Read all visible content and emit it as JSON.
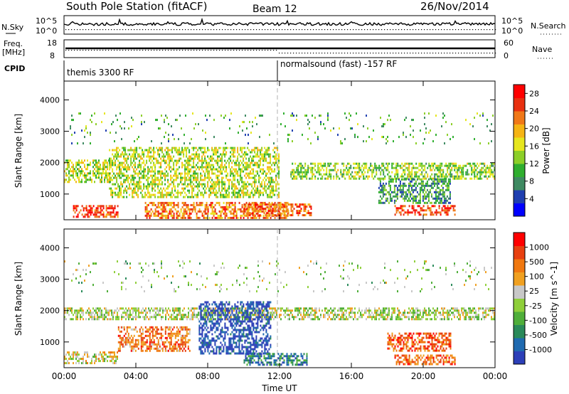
{
  "header": {
    "station": "South Pole Station (fitACF)",
    "beam": "Beam 12",
    "date": "26/Nov/2014"
  },
  "strips": {
    "nsky_label": "N.Sky",
    "nsky_ticks": [
      "10^5",
      "10^0"
    ],
    "nsearch_label": "N.Search",
    "freq_label": "Freq.",
    "freq_unit": "[MHz]",
    "freq_ticks": [
      "18",
      "8"
    ],
    "nave_label": "Nave",
    "nave_ticks": [
      "60",
      "0"
    ],
    "cpid_label": "CPID",
    "cpid_segments": [
      {
        "label": "themis 3300 RF",
        "start": "00:00",
        "end": "12:00"
      },
      {
        "label": "normalsound (fast) -157 RF",
        "start": "12:00",
        "end": "24:00"
      }
    ]
  },
  "chart_data": [
    {
      "type": "heatmap",
      "title": "",
      "ylabel": "Slant Range [km]",
      "yticks": [
        "1000",
        "2000",
        "3000",
        "4000"
      ],
      "ylim": [
        180,
        4600
      ],
      "xlim": [
        "00:00",
        "24:00"
      ],
      "colorbar_label": "Power [dB]",
      "colorbar_ticks": [
        "4",
        "8",
        "12",
        "16",
        "20",
        "24",
        "28"
      ],
      "colorbar_range": [
        0,
        30
      ],
      "colors": [
        "#0000ff",
        "#1f3fb0",
        "#3f8a62",
        "#2fae2f",
        "#8ccf28",
        "#e6e61e",
        "#f5b414",
        "#f07818",
        "#e83010",
        "#ff0000"
      ],
      "bands": [
        {
          "start_h": 0.0,
          "end_h": 2.6,
          "range_lo": 1400,
          "range_hi": 2100,
          "level": 0.5
        },
        {
          "start_h": 0.5,
          "end_h": 3.0,
          "range_lo": 300,
          "range_hi": 650,
          "level": 0.85
        },
        {
          "start_h": 2.5,
          "end_h": 12.0,
          "range_lo": 900,
          "range_hi": 2500,
          "level": 0.5
        },
        {
          "start_h": 4.5,
          "end_h": 12.5,
          "range_lo": 250,
          "range_hi": 750,
          "level": 0.75
        },
        {
          "start_h": 10.0,
          "end_h": 13.8,
          "range_lo": 300,
          "range_hi": 700,
          "level": 0.8
        },
        {
          "start_h": 12.6,
          "end_h": 24.0,
          "range_lo": 1500,
          "range_hi": 2000,
          "level": 0.45
        },
        {
          "start_h": 18.4,
          "end_h": 21.8,
          "range_lo": 350,
          "range_hi": 650,
          "level": 0.85
        },
        {
          "start_h": 17.5,
          "end_h": 21.5,
          "range_lo": 700,
          "range_hi": 1500,
          "level": 0.3
        },
        {
          "start_h": 0.0,
          "end_h": 24.0,
          "range_lo": 2600,
          "range_hi": 3600,
          "level": 0.35
        }
      ]
    },
    {
      "type": "heatmap",
      "title": "",
      "ylabel": "Slant Range [km]",
      "yticks": [
        "1000",
        "2000",
        "3000",
        "4000"
      ],
      "ylim": [
        180,
        4600
      ],
      "xlabel": "Time UT",
      "xticks": [
        "00:00",
        "04:00",
        "08:00",
        "12:00",
        "16:00",
        "20:00",
        "00:00"
      ],
      "xlim": [
        "00:00",
        "24:00"
      ],
      "colorbar_label": "Velocity [m s^-1]",
      "colorbar_ticks": [
        "1000",
        "500",
        "100",
        "25",
        "-25",
        "-100",
        "-500",
        "-1000"
      ],
      "colorbar_range": [
        -1000,
        1000
      ],
      "colors": [
        "#2c3fb8",
        "#1f6ab0",
        "#2a8a5a",
        "#4fae3a",
        "#8fcf3a",
        "#c8c8c8",
        "#f0a020",
        "#f07810",
        "#e84010",
        "#ff0000"
      ],
      "bands": [
        {
          "start_h": 0.0,
          "end_h": 24.0,
          "range_lo": 1700,
          "range_hi": 2100,
          "level": 0.5
        },
        {
          "start_h": 0.0,
          "end_h": 3.0,
          "range_lo": 300,
          "range_hi": 700,
          "level": 0.55
        },
        {
          "start_h": 3.0,
          "end_h": 7.0,
          "range_lo": 700,
          "range_hi": 1500,
          "level": 0.75
        },
        {
          "start_h": 7.5,
          "end_h": 11.5,
          "range_lo": 600,
          "range_hi": 2300,
          "level": 0.05
        },
        {
          "start_h": 10.0,
          "end_h": 13.5,
          "range_lo": 250,
          "range_hi": 650,
          "level": 0.2
        },
        {
          "start_h": 18.4,
          "end_h": 21.8,
          "range_lo": 300,
          "range_hi": 600,
          "level": 0.78
        },
        {
          "start_h": 18.0,
          "end_h": 21.5,
          "range_lo": 700,
          "range_hi": 1300,
          "level": 0.82
        },
        {
          "start_h": 0.0,
          "end_h": 24.0,
          "range_lo": 2600,
          "range_hi": 3600,
          "level": 0.45
        }
      ]
    }
  ]
}
